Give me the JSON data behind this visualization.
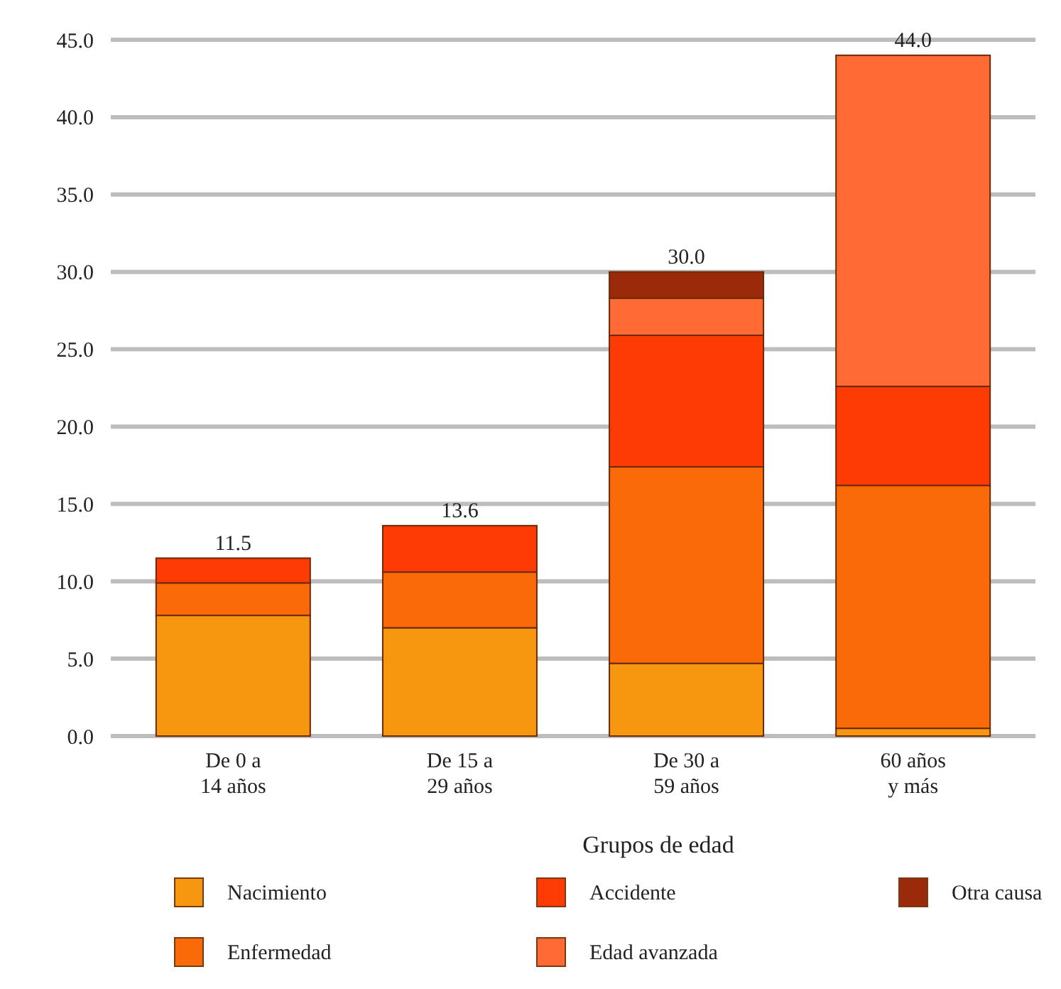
{
  "chart_data": {
    "type": "bar",
    "stacked": true,
    "xlabel": "Grupos de edad",
    "categories": [
      "De 0 a\n14 años",
      "De 15 a\n29 años",
      "De 30 a\n59 años",
      "60 años\ny más"
    ],
    "series": [
      {
        "name": "Nacimiento",
        "color": "#f7960f",
        "values": [
          7.8,
          7.0,
          4.7,
          0.5
        ]
      },
      {
        "name": "Enfermedad",
        "color": "#fb6a08",
        "values": [
          2.1,
          3.6,
          12.7,
          15.7
        ]
      },
      {
        "name": "Accidente",
        "color": "#ff3b05",
        "values": [
          1.6,
          3.0,
          8.5,
          6.4
        ]
      },
      {
        "name": "Edad avanzada",
        "color": "#ff6a35",
        "values": [
          null,
          null,
          2.4,
          21.4
        ]
      },
      {
        "name": "Otra causa",
        "color": "#9b2a0a",
        "values": [
          null,
          null,
          1.7,
          null
        ]
      }
    ],
    "totals": [
      "11.5",
      "13.6",
      "30.0",
      "44.0"
    ],
    "ylim": [
      0,
      45
    ],
    "yticks": [
      {
        "value": 0,
        "label": "0.0"
      },
      {
        "value": 5,
        "label": "5.0"
      },
      {
        "value": 10,
        "label": "10.0"
      },
      {
        "value": 15,
        "label": "15.0"
      },
      {
        "value": 20,
        "label": "20.0"
      },
      {
        "value": 25,
        "label": "25.0"
      },
      {
        "value": 30,
        "label": "30.0"
      },
      {
        "value": 35,
        "label": "35.0"
      },
      {
        "value": 40,
        "label": "40.0"
      },
      {
        "value": 45,
        "label": "45.0"
      }
    ],
    "grid": "y",
    "legend": "bottom"
  }
}
